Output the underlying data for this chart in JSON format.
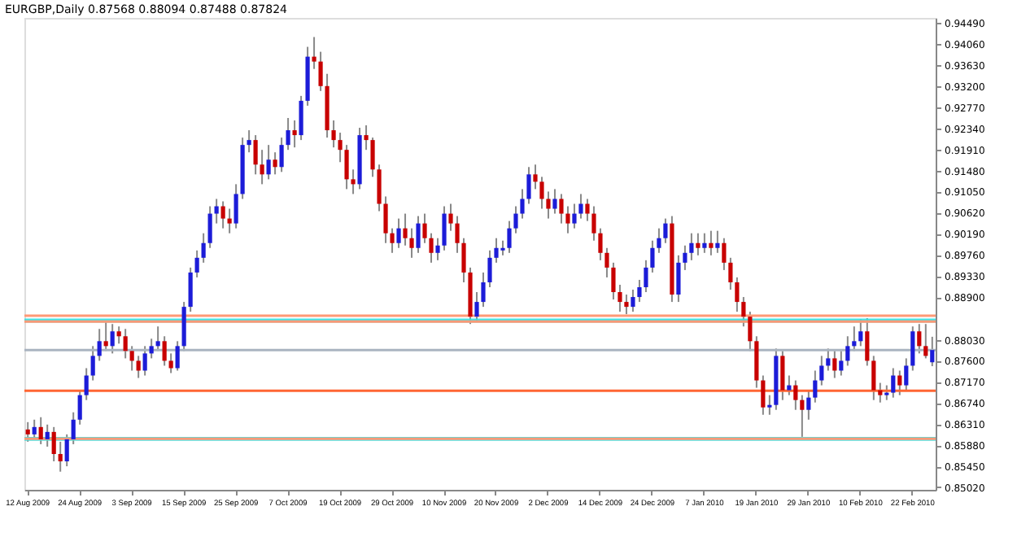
{
  "chart_data": {
    "type": "candlestick",
    "title": "EURGBP,Daily  0.87568 0.88094 0.87488 0.87824",
    "categories": [
      "12 Aug 2009",
      null,
      null,
      null,
      null,
      null,
      null,
      null,
      "24 Aug 2009",
      null,
      null,
      null,
      null,
      null,
      null,
      null,
      "3 Sep 2009",
      null,
      null,
      null,
      null,
      null,
      null,
      null,
      "15 Sep 2009",
      null,
      null,
      null,
      null,
      null,
      null,
      null,
      "25 Sep 2009",
      null,
      null,
      null,
      null,
      null,
      null,
      null,
      "7 Oct 2009",
      null,
      null,
      null,
      null,
      null,
      null,
      null,
      "19 Oct 2009",
      null,
      null,
      null,
      null,
      null,
      null,
      null,
      "29 Oct 2009",
      null,
      null,
      null,
      null,
      null,
      null,
      null,
      "10 Nov 2009",
      null,
      null,
      null,
      null,
      null,
      null,
      null,
      "20 Nov 2009",
      null,
      null,
      null,
      null,
      null,
      null,
      null,
      "2 Dec 2009",
      null,
      null,
      null,
      null,
      null,
      null,
      null,
      "14 Dec 2009",
      null,
      null,
      null,
      null,
      null,
      null,
      null,
      "24 Dec 2009",
      null,
      null,
      null,
      null,
      null,
      null,
      null,
      "7 Jan 2010",
      null,
      null,
      null,
      null,
      null,
      null,
      null,
      "19 Jan 2010",
      null,
      null,
      null,
      null,
      null,
      null,
      null,
      "29 Jan 2010",
      null,
      null,
      null,
      null,
      null,
      null,
      null,
      "10 Feb 2010",
      null,
      null,
      null,
      null,
      null,
      null,
      null,
      "22 Feb 2010",
      null,
      null,
      null
    ],
    "ohlc": [
      [
        0.862,
        0.8635,
        0.8595,
        0.861
      ],
      [
        0.861,
        0.864,
        0.86,
        0.8625
      ],
      [
        0.8625,
        0.8645,
        0.859,
        0.86
      ],
      [
        0.86,
        0.863,
        0.8585,
        0.8615
      ],
      [
        0.8615,
        0.8625,
        0.8555,
        0.857
      ],
      [
        0.857,
        0.8595,
        0.8534,
        0.8555
      ],
      [
        0.8555,
        0.861,
        0.8545,
        0.86
      ],
      [
        0.86,
        0.8655,
        0.859,
        0.864
      ],
      [
        0.864,
        0.87,
        0.863,
        0.869
      ],
      [
        0.869,
        0.8745,
        0.868,
        0.873
      ],
      [
        0.873,
        0.879,
        0.872,
        0.877
      ],
      [
        0.877,
        0.8825,
        0.876,
        0.88
      ],
      [
        0.88,
        0.884,
        0.878,
        0.879
      ],
      [
        0.879,
        0.8835,
        0.8775,
        0.882
      ],
      [
        0.882,
        0.883,
        0.8795,
        0.881
      ],
      [
        0.881,
        0.8825,
        0.8765,
        0.878
      ],
      [
        0.878,
        0.879,
        0.874,
        0.876
      ],
      [
        0.876,
        0.877,
        0.8725,
        0.874
      ],
      [
        0.874,
        0.879,
        0.873,
        0.8775
      ],
      [
        0.8775,
        0.8805,
        0.8765,
        0.879
      ],
      [
        0.879,
        0.883,
        0.878,
        0.88
      ],
      [
        0.88,
        0.881,
        0.875,
        0.876
      ],
      [
        0.876,
        0.8775,
        0.8735,
        0.8745
      ],
      [
        0.8745,
        0.88,
        0.874,
        0.879
      ],
      [
        0.879,
        0.888,
        0.878,
        0.887
      ],
      [
        0.887,
        0.895,
        0.886,
        0.894
      ],
      [
        0.894,
        0.8985,
        0.893,
        0.897
      ],
      [
        0.897,
        0.902,
        0.896,
        0.9
      ],
      [
        0.9,
        0.9075,
        0.899,
        0.906
      ],
      [
        0.906,
        0.909,
        0.904,
        0.9075
      ],
      [
        0.9075,
        0.9085,
        0.903,
        0.905
      ],
      [
        0.905,
        0.907,
        0.902,
        0.904
      ],
      [
        0.904,
        0.912,
        0.903,
        0.91
      ],
      [
        0.91,
        0.9215,
        0.909,
        0.92
      ],
      [
        0.92,
        0.923,
        0.9185,
        0.921
      ],
      [
        0.921,
        0.922,
        0.914,
        0.916
      ],
      [
        0.916,
        0.919,
        0.912,
        0.914
      ],
      [
        0.914,
        0.92,
        0.913,
        0.917
      ],
      [
        0.917,
        0.9185,
        0.914,
        0.9155
      ],
      [
        0.9155,
        0.9215,
        0.9145,
        0.92
      ],
      [
        0.92,
        0.9255,
        0.919,
        0.923
      ],
      [
        0.923,
        0.925,
        0.9195,
        0.922
      ],
      [
        0.922,
        0.93,
        0.921,
        0.929
      ],
      [
        0.929,
        0.94,
        0.928,
        0.938
      ],
      [
        0.938,
        0.942,
        0.9355,
        0.937
      ],
      [
        0.937,
        0.939,
        0.931,
        0.932
      ],
      [
        0.932,
        0.9345,
        0.9215,
        0.923
      ],
      [
        0.923,
        0.925,
        0.9195,
        0.921
      ],
      [
        0.921,
        0.9225,
        0.9165,
        0.919
      ],
      [
        0.919,
        0.92,
        0.911,
        0.913
      ],
      [
        0.913,
        0.915,
        0.91,
        0.912
      ],
      [
        0.912,
        0.9235,
        0.911,
        0.922
      ],
      [
        0.922,
        0.924,
        0.919,
        0.921
      ],
      [
        0.921,
        0.9215,
        0.9135,
        0.915
      ],
      [
        0.915,
        0.916,
        0.9065,
        0.908
      ],
      [
        0.908,
        0.9095,
        0.9,
        0.902
      ],
      [
        0.902,
        0.903,
        0.898,
        0.9
      ],
      [
        0.9,
        0.905,
        0.899,
        0.903
      ],
      [
        0.903,
        0.906,
        0.8995,
        0.901
      ],
      [
        0.901,
        0.903,
        0.897,
        0.899
      ],
      [
        0.899,
        0.9055,
        0.898,
        0.904
      ],
      [
        0.904,
        0.906,
        0.9,
        0.901
      ],
      [
        0.901,
        0.902,
        0.896,
        0.898
      ],
      [
        0.898,
        0.901,
        0.8965,
        0.8995
      ],
      [
        0.8995,
        0.9075,
        0.8985,
        0.906
      ],
      [
        0.906,
        0.908,
        0.9025,
        0.904
      ],
      [
        0.904,
        0.9055,
        0.898,
        0.9
      ],
      [
        0.9,
        0.901,
        0.892,
        0.894
      ],
      [
        0.894,
        0.895,
        0.8835,
        0.885
      ],
      [
        0.885,
        0.89,
        0.884,
        0.888
      ],
      [
        0.888,
        0.894,
        0.887,
        0.892
      ],
      [
        0.892,
        0.8985,
        0.891,
        0.897
      ],
      [
        0.897,
        0.901,
        0.896,
        0.899
      ],
      [
        0.8985,
        0.9005,
        0.8975,
        0.899
      ],
      [
        0.899,
        0.9045,
        0.898,
        0.903
      ],
      [
        0.903,
        0.9075,
        0.902,
        0.906
      ],
      [
        0.906,
        0.911,
        0.905,
        0.909
      ],
      [
        0.909,
        0.9155,
        0.908,
        0.914
      ],
      [
        0.914,
        0.916,
        0.911,
        0.9125
      ],
      [
        0.9125,
        0.9135,
        0.907,
        0.909
      ],
      [
        0.909,
        0.9105,
        0.905,
        0.907
      ],
      [
        0.907,
        0.911,
        0.906,
        0.909
      ],
      [
        0.909,
        0.91,
        0.904,
        0.906
      ],
      [
        0.906,
        0.9075,
        0.902,
        0.904
      ],
      [
        0.904,
        0.908,
        0.903,
        0.906
      ],
      [
        0.906,
        0.91,
        0.905,
        0.908
      ],
      [
        0.908,
        0.909,
        0.9045,
        0.906
      ],
      [
        0.906,
        0.9075,
        0.9005,
        0.902
      ],
      [
        0.902,
        0.903,
        0.8965,
        0.898
      ],
      [
        0.898,
        0.899,
        0.893,
        0.895
      ],
      [
        0.895,
        0.896,
        0.8885,
        0.89
      ],
      [
        0.89,
        0.8915,
        0.886,
        0.888
      ],
      [
        0.888,
        0.8895,
        0.8855,
        0.887
      ],
      [
        0.887,
        0.8905,
        0.886,
        0.889
      ],
      [
        0.889,
        0.8925,
        0.888,
        0.891
      ],
      [
        0.891,
        0.8965,
        0.89,
        0.895
      ],
      [
        0.895,
        0.9005,
        0.894,
        0.899
      ],
      [
        0.899,
        0.903,
        0.898,
        0.901
      ],
      [
        0.901,
        0.905,
        0.9,
        0.904
      ],
      [
        0.904,
        0.9055,
        0.888,
        0.8895
      ],
      [
        0.8895,
        0.8975,
        0.888,
        0.896
      ],
      [
        0.896,
        0.8995,
        0.8945,
        0.898
      ],
      [
        0.898,
        0.902,
        0.8965,
        0.9
      ],
      [
        0.9,
        0.902,
        0.8975,
        0.899
      ],
      [
        0.899,
        0.902,
        0.898,
        0.9
      ],
      [
        0.9,
        0.9025,
        0.8975,
        0.899
      ],
      [
        0.899,
        0.9025,
        0.898,
        0.9
      ],
      [
        0.9,
        0.901,
        0.8945,
        0.896
      ],
      [
        0.896,
        0.897,
        0.8905,
        0.892
      ],
      [
        0.892,
        0.893,
        0.886,
        0.888
      ],
      [
        0.888,
        0.889,
        0.883,
        0.885
      ],
      [
        0.885,
        0.886,
        0.878,
        0.88
      ],
      [
        0.88,
        0.881,
        0.8705,
        0.872
      ],
      [
        0.872,
        0.873,
        0.865,
        0.8665
      ],
      [
        0.8665,
        0.869,
        0.865,
        0.867
      ],
      [
        0.867,
        0.8785,
        0.866,
        0.877
      ],
      [
        0.877,
        0.878,
        0.868,
        0.87
      ],
      [
        0.87,
        0.873,
        0.869,
        0.871
      ],
      [
        0.871,
        0.872,
        0.866,
        0.868
      ],
      [
        0.868,
        0.869,
        0.8605,
        0.866
      ],
      [
        0.866,
        0.87,
        0.864,
        0.8685
      ],
      [
        0.8685,
        0.874,
        0.8675,
        0.872
      ],
      [
        0.872,
        0.877,
        0.871,
        0.875
      ],
      [
        0.875,
        0.8785,
        0.874,
        0.8765
      ],
      [
        0.8765,
        0.878,
        0.8725,
        0.874
      ],
      [
        0.874,
        0.878,
        0.873,
        0.876
      ],
      [
        0.876,
        0.881,
        0.875,
        0.879
      ],
      [
        0.879,
        0.883,
        0.878,
        0.88
      ],
      [
        0.88,
        0.8845,
        0.879,
        0.882
      ],
      [
        0.882,
        0.8847,
        0.875,
        0.876
      ],
      [
        0.876,
        0.877,
        0.868,
        0.87
      ],
      [
        0.87,
        0.8715,
        0.8675,
        0.869
      ],
      [
        0.869,
        0.871,
        0.868,
        0.8695
      ],
      [
        0.8695,
        0.8745,
        0.8685,
        0.873
      ],
      [
        0.873,
        0.874,
        0.869,
        0.871
      ],
      [
        0.871,
        0.8765,
        0.87,
        0.875
      ],
      [
        0.875,
        0.883,
        0.874,
        0.882
      ],
      [
        0.882,
        0.8835,
        0.8775,
        0.879
      ],
      [
        0.879,
        0.8835,
        0.8765,
        0.877
      ],
      [
        0.8757,
        0.8809,
        0.8749,
        0.8782
      ]
    ],
    "colors": [
      "#c80000",
      "#1c1cd8",
      "#c80000",
      "#1c1cd8",
      "#c80000",
      "#c80000",
      "#1c1cd8",
      "#1c1cd8",
      "#1c1cd8",
      "#1c1cd8",
      "#1c1cd8",
      "#1c1cd8",
      "#c80000",
      "#1c1cd8",
      "#c80000",
      "#c80000",
      "#c80000",
      "#c80000",
      "#1c1cd8",
      "#1c1cd8",
      "#1c1cd8",
      "#c80000",
      "#c80000",
      "#1c1cd8",
      "#1c1cd8",
      "#1c1cd8",
      "#1c1cd8",
      "#1c1cd8",
      "#1c1cd8",
      "#1c1cd8",
      "#c80000",
      "#c80000",
      "#1c1cd8",
      "#1c1cd8",
      "#1c1cd8",
      "#c80000",
      "#c80000",
      "#1c1cd8",
      "#c80000",
      "#1c1cd8",
      "#1c1cd8",
      "#c80000",
      "#1c1cd8",
      "#1c1cd8",
      "#c80000",
      "#c80000",
      "#c80000",
      "#c80000",
      "#c80000",
      "#c80000",
      "#c80000",
      "#1c1cd8",
      "#c80000",
      "#c80000",
      "#c80000",
      "#c80000",
      "#c80000",
      "#1c1cd8",
      "#c80000",
      "#c80000",
      "#1c1cd8",
      "#c80000",
      "#c80000",
      "#1c1cd8",
      "#1c1cd8",
      "#c80000",
      "#c80000",
      "#c80000",
      "#c80000",
      "#1c1cd8",
      "#1c1cd8",
      "#1c1cd8",
      "#1c1cd8",
      "#1c1cd8",
      "#1c1cd8",
      "#1c1cd8",
      "#1c1cd8",
      "#1c1cd8",
      "#c80000",
      "#c80000",
      "#c80000",
      "#1c1cd8",
      "#c80000",
      "#c80000",
      "#1c1cd8",
      "#1c1cd8",
      "#c80000",
      "#c80000",
      "#c80000",
      "#c80000",
      "#c80000",
      "#c80000",
      "#c80000",
      "#1c1cd8",
      "#1c1cd8",
      "#1c1cd8",
      "#1c1cd8",
      "#1c1cd8",
      "#1c1cd8",
      "#c80000",
      "#1c1cd8",
      "#1c1cd8",
      "#1c1cd8",
      "#c80000",
      "#1c1cd8",
      "#c80000",
      "#1c1cd8",
      "#c80000",
      "#c80000",
      "#c80000",
      "#c80000",
      "#c80000",
      "#c80000",
      "#c80000",
      "#1c1cd8",
      "#1c1cd8",
      "#c80000",
      "#1c1cd8",
      "#c80000",
      "#c80000",
      "#1c1cd8",
      "#1c1cd8",
      "#1c1cd8",
      "#1c1cd8",
      "#c80000",
      "#1c1cd8",
      "#1c1cd8",
      "#1c1cd8",
      "#1c1cd8",
      "#c80000",
      "#c80000",
      "#c80000",
      "#1c1cd8",
      "#1c1cd8",
      "#c80000",
      "#1c1cd8",
      "#1c1cd8",
      "#c80000",
      "#c80000",
      "#1c1cd8"
    ],
    "ylim": [
      0.8497,
      0.9459
    ],
    "yticks": [
      {
        "value": 0.9449,
        "label": "0.94490"
      },
      {
        "value": 0.9406,
        "label": "0.94060"
      },
      {
        "value": 0.9363,
        "label": "0.93630"
      },
      {
        "value": 0.932,
        "label": "0.93200"
      },
      {
        "value": 0.9277,
        "label": "0.92770"
      },
      {
        "value": 0.9234,
        "label": "0.92340"
      },
      {
        "value": 0.9191,
        "label": "0.91910"
      },
      {
        "value": 0.9148,
        "label": "0.91480"
      },
      {
        "value": 0.9105,
        "label": "0.91050"
      },
      {
        "value": 0.9062,
        "label": "0.90620"
      },
      {
        "value": 0.9019,
        "label": "0.90190"
      },
      {
        "value": 0.8976,
        "label": "0.89760"
      },
      {
        "value": 0.8933,
        "label": "0.89330"
      },
      {
        "value": 0.889,
        "label": "0.88900"
      },
      {
        "value": 0.8803,
        "label": "0.88030"
      },
      {
        "value": 0.876,
        "label": "0.87600"
      },
      {
        "value": 0.8717,
        "label": "0.87170"
      },
      {
        "value": 0.8674,
        "label": "0.86740"
      },
      {
        "value": 0.8631,
        "label": "0.86310"
      },
      {
        "value": 0.8588,
        "label": "0.85880"
      },
      {
        "value": 0.8545,
        "label": "0.85450"
      },
      {
        "value": 0.8502,
        "label": "0.85020"
      }
    ],
    "bands": [
      {
        "axis": "y",
        "from": 0.8838,
        "to": 0.8846,
        "color": "#33e0e0"
      },
      {
        "axis": "y",
        "from": 0.8597,
        "to": 0.8605,
        "color": "#33e0e0"
      }
    ],
    "ref_lines": [
      {
        "axis": "y",
        "value": 0.8852,
        "color": "#ff9977"
      },
      {
        "axis": "y",
        "value": 0.884,
        "color": "#ff9977"
      },
      {
        "axis": "y",
        "value": 0.8699,
        "color": "#ff6633"
      },
      {
        "axis": "y",
        "value": 0.8601,
        "color": "#ff9977"
      },
      {
        "axis": "y",
        "value": 0.8782,
        "color": "#aab4c0"
      }
    ],
    "grid": false
  }
}
